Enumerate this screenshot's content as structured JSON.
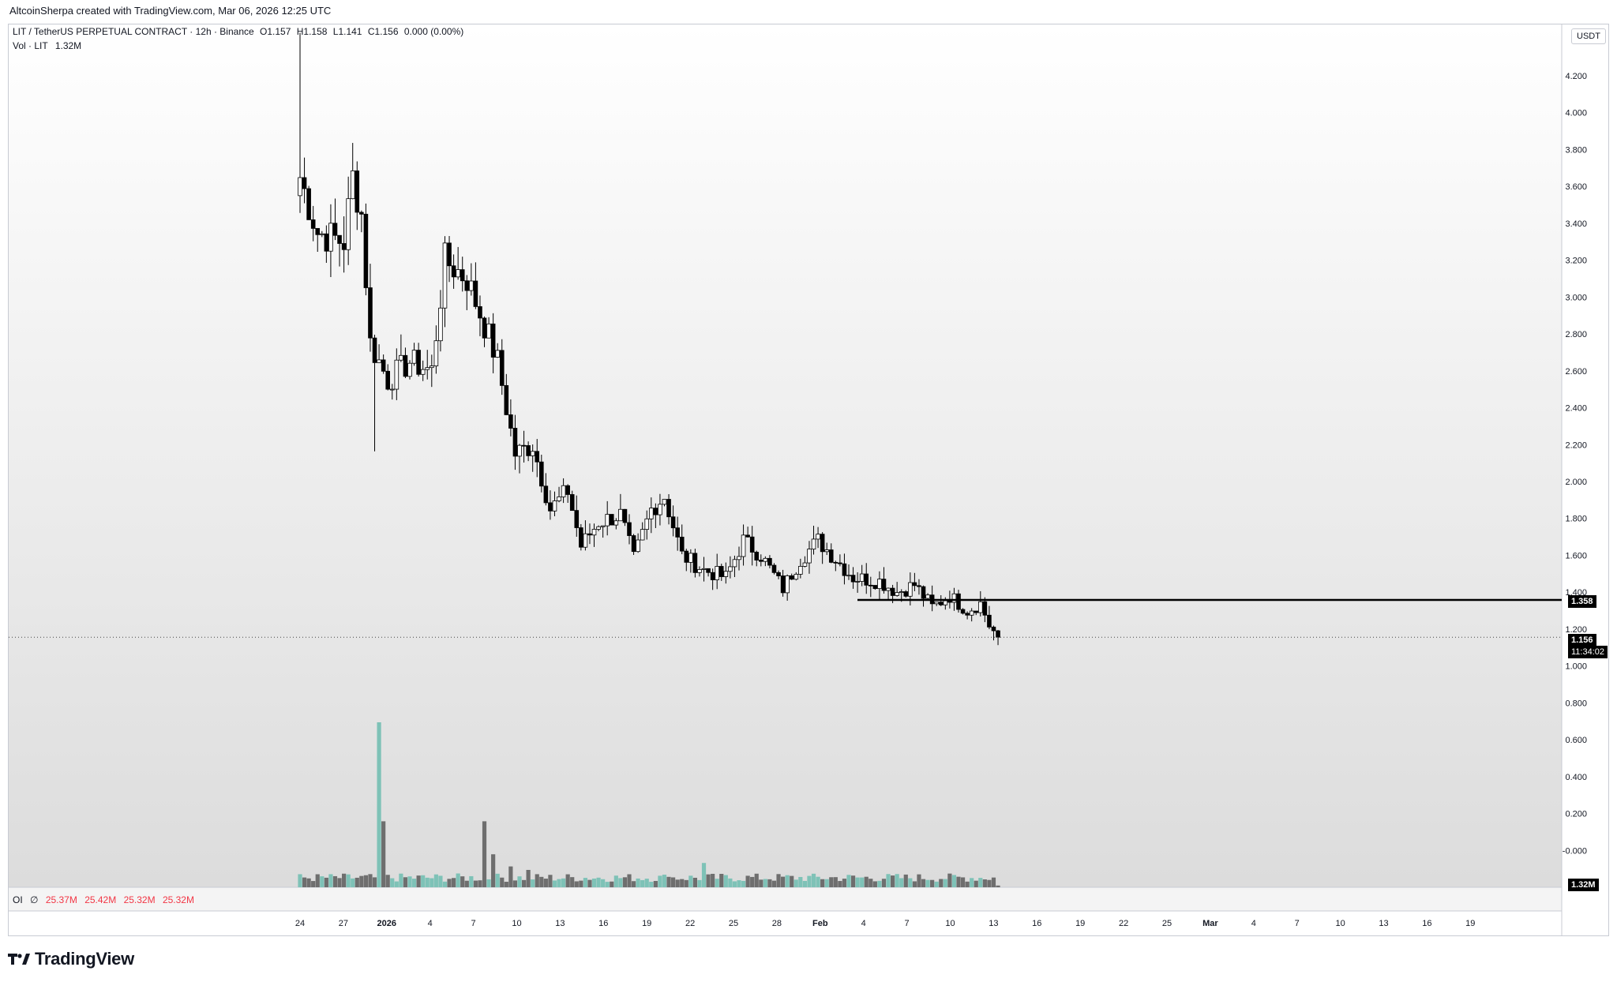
{
  "header": {
    "created_by": "AltcoinSherpa created with TradingView.com, Mar 06, 2026 12:25 UTC"
  },
  "legend": {
    "symbol": "LIT / TetherUS PERPETUAL CONTRACT · 12h · Binance",
    "open": "O1.157",
    "high": "H1.158",
    "low": "L1.141",
    "close": "C1.156",
    "change": "0.000 (0.00%)",
    "vol_label": "Vol · LIT",
    "vol_value": "1.32M"
  },
  "oi_legend": {
    "label": "OI",
    "symbol": "∅",
    "values": [
      "25.37M",
      "25.42M",
      "25.32M",
      "25.32M"
    ]
  },
  "price_axis": {
    "unit": "USDT",
    "support_label": "1.358",
    "last_price_label": "1.156",
    "countdown_label": "11:34:02",
    "volume_label": "1.32M"
  },
  "brand": {
    "name": "TradingView"
  },
  "colors": {
    "up": "#ffffff",
    "down": "#000000",
    "vol_up": "#7ec2b7",
    "vol_down": "#6e6e6e",
    "oi": "#f23645"
  },
  "chart_data": {
    "type": "candlestick",
    "timeframe": "12h",
    "y_ticks": [
      "4.200",
      "4.000",
      "3.800",
      "3.600",
      "3.400",
      "3.200",
      "3.000",
      "2.800",
      "2.600",
      "2.400",
      "2.200",
      "2.000",
      "1.800",
      "1.600",
      "1.400",
      "1.200",
      "1.000",
      "0.800",
      "0.600",
      "0.400",
      "0.200",
      "-0.000"
    ],
    "x_ticks": [
      "24",
      "27",
      "2026",
      "4",
      "7",
      "10",
      "13",
      "16",
      "19",
      "22",
      "25",
      "28",
      "Feb",
      "4",
      "7",
      "10",
      "13",
      "16",
      "19",
      "22",
      "25",
      "Mar",
      "4",
      "7",
      "10",
      "13",
      "16",
      "19"
    ],
    "horizontal_line": {
      "value": 1.358,
      "from_label": "Feb",
      "to": "right-edge"
    },
    "last_price": 1.156,
    "anchors": [
      {
        "i": 0,
        "c": 3.65
      },
      {
        "i": 4,
        "c": 3.35
      },
      {
        "i": 10,
        "c": 3.3
      },
      {
        "i": 12,
        "c": 3.65
      },
      {
        "i": 14,
        "c": 3.45
      },
      {
        "i": 16,
        "c": 2.75
      },
      {
        "i": 20,
        "c": 2.55
      },
      {
        "i": 25,
        "c": 2.65
      },
      {
        "i": 30,
        "c": 2.6
      },
      {
        "i": 33,
        "c": 3.2
      },
      {
        "i": 38,
        "c": 3.1
      },
      {
        "i": 42,
        "c": 2.85
      },
      {
        "i": 45,
        "c": 2.65
      },
      {
        "i": 49,
        "c": 2.15
      },
      {
        "i": 53,
        "c": 2.2
      },
      {
        "i": 57,
        "c": 1.85
      },
      {
        "i": 61,
        "c": 1.95
      },
      {
        "i": 64,
        "c": 1.65
      },
      {
        "i": 68,
        "c": 1.78
      },
      {
        "i": 73,
        "c": 1.82
      },
      {
        "i": 76,
        "c": 1.58
      },
      {
        "i": 80,
        "c": 1.85
      },
      {
        "i": 83,
        "c": 1.92
      },
      {
        "i": 87,
        "c": 1.6
      },
      {
        "i": 92,
        "c": 1.52
      },
      {
        "i": 97,
        "c": 1.48
      },
      {
        "i": 101,
        "c": 1.68
      },
      {
        "i": 105,
        "c": 1.6
      },
      {
        "i": 110,
        "c": 1.42
      },
      {
        "i": 114,
        "c": 1.58
      },
      {
        "i": 118,
        "c": 1.68
      },
      {
        "i": 122,
        "c": 1.58
      },
      {
        "i": 126,
        "c": 1.48
      },
      {
        "i": 132,
        "c": 1.46
      },
      {
        "i": 136,
        "c": 1.4
      },
      {
        "i": 140,
        "c": 1.44
      },
      {
        "i": 144,
        "c": 1.32
      },
      {
        "i": 148,
        "c": 1.38
      },
      {
        "i": 152,
        "c": 1.3
      },
      {
        "i": 155,
        "c": 1.34
      },
      {
        "i": 157,
        "c": 1.22
      },
      {
        "i": 159,
        "c": 1.156
      }
    ],
    "volume_spikes": [
      {
        "i": 18,
        "v": 0.95
      },
      {
        "i": 19,
        "v": 0.38
      },
      {
        "i": 42,
        "v": 0.38
      },
      {
        "i": 44,
        "v": 0.19
      },
      {
        "i": 48,
        "v": 0.12
      },
      {
        "i": 52,
        "v": 0.1
      },
      {
        "i": 84,
        "v": 0.06
      },
      {
        "i": 92,
        "v": 0.14
      }
    ]
  }
}
